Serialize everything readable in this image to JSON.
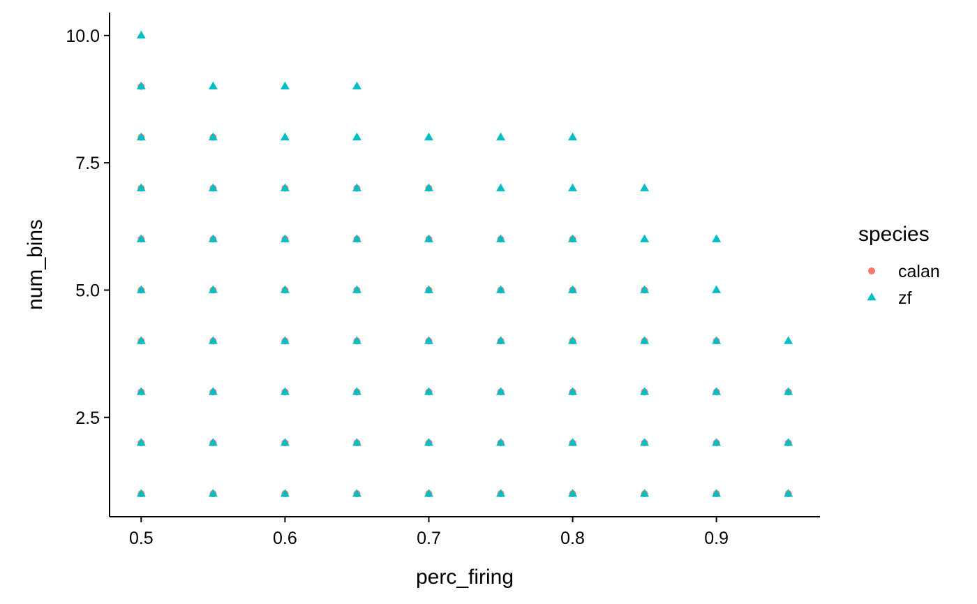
{
  "chart_data": {
    "type": "scatter",
    "title": "",
    "xlabel": "perc_firing",
    "ylabel": "num_bins",
    "xlim": [
      0.478,
      0.972
    ],
    "ylim": [
      0.55,
      10.45
    ],
    "x_ticks": [
      0.5,
      0.6,
      0.7,
      0.8,
      0.9
    ],
    "x_tick_labels": [
      "0.5",
      "0.6",
      "0.7",
      "0.8",
      "0.9"
    ],
    "y_ticks": [
      2.5,
      5.0,
      7.5,
      10.0
    ],
    "y_tick_labels": [
      "2.5",
      "5.0",
      "7.5",
      "10.0"
    ],
    "grid": false,
    "legend": {
      "title": "species",
      "position": "right",
      "entries": [
        {
          "label": "calan",
          "shape": "circle",
          "color": "#F8766D"
        },
        {
          "label": "zf",
          "shape": "triangle",
          "color": "#00BFC4"
        }
      ]
    },
    "series": [
      {
        "name": "calan",
        "shape": "circle",
        "color": "#F8766D",
        "points": [
          [
            0.5,
            1
          ],
          [
            0.5,
            2
          ],
          [
            0.5,
            3
          ],
          [
            0.5,
            4
          ],
          [
            0.5,
            5
          ],
          [
            0.5,
            6
          ],
          [
            0.5,
            7
          ],
          [
            0.5,
            8
          ],
          [
            0.5,
            9
          ],
          [
            0.55,
            1
          ],
          [
            0.55,
            2
          ],
          [
            0.55,
            3
          ],
          [
            0.55,
            4
          ],
          [
            0.55,
            5
          ],
          [
            0.55,
            6
          ],
          [
            0.55,
            7
          ],
          [
            0.55,
            8
          ],
          [
            0.6,
            1
          ],
          [
            0.6,
            2
          ],
          [
            0.6,
            3
          ],
          [
            0.6,
            4
          ],
          [
            0.6,
            5
          ],
          [
            0.6,
            6
          ],
          [
            0.6,
            7
          ],
          [
            0.65,
            1
          ],
          [
            0.65,
            2
          ],
          [
            0.65,
            3
          ],
          [
            0.65,
            4
          ],
          [
            0.65,
            5
          ],
          [
            0.65,
            6
          ],
          [
            0.65,
            7
          ],
          [
            0.7,
            1
          ],
          [
            0.7,
            2
          ],
          [
            0.7,
            3
          ],
          [
            0.7,
            4
          ],
          [
            0.7,
            5
          ],
          [
            0.7,
            6
          ],
          [
            0.7,
            7
          ],
          [
            0.75,
            1
          ],
          [
            0.75,
            2
          ],
          [
            0.75,
            3
          ],
          [
            0.75,
            4
          ],
          [
            0.75,
            5
          ],
          [
            0.75,
            6
          ],
          [
            0.8,
            1
          ],
          [
            0.8,
            2
          ],
          [
            0.8,
            3
          ],
          [
            0.8,
            4
          ],
          [
            0.8,
            5
          ],
          [
            0.8,
            6
          ],
          [
            0.85,
            1
          ],
          [
            0.85,
            2
          ],
          [
            0.85,
            3
          ],
          [
            0.85,
            4
          ],
          [
            0.85,
            5
          ],
          [
            0.9,
            1
          ],
          [
            0.9,
            2
          ],
          [
            0.9,
            3
          ],
          [
            0.9,
            4
          ],
          [
            0.95,
            1
          ],
          [
            0.95,
            2
          ],
          [
            0.95,
            3
          ]
        ]
      },
      {
        "name": "zf",
        "shape": "triangle",
        "color": "#00BFC4",
        "points": [
          [
            0.5,
            1
          ],
          [
            0.5,
            2
          ],
          [
            0.5,
            3
          ],
          [
            0.5,
            4
          ],
          [
            0.5,
            5
          ],
          [
            0.5,
            6
          ],
          [
            0.5,
            7
          ],
          [
            0.5,
            8
          ],
          [
            0.5,
            9
          ],
          [
            0.5,
            10
          ],
          [
            0.55,
            1
          ],
          [
            0.55,
            2
          ],
          [
            0.55,
            3
          ],
          [
            0.55,
            4
          ],
          [
            0.55,
            5
          ],
          [
            0.55,
            6
          ],
          [
            0.55,
            7
          ],
          [
            0.55,
            8
          ],
          [
            0.55,
            9
          ],
          [
            0.6,
            1
          ],
          [
            0.6,
            2
          ],
          [
            0.6,
            3
          ],
          [
            0.6,
            4
          ],
          [
            0.6,
            5
          ],
          [
            0.6,
            6
          ],
          [
            0.6,
            7
          ],
          [
            0.6,
            8
          ],
          [
            0.6,
            9
          ],
          [
            0.65,
            1
          ],
          [
            0.65,
            2
          ],
          [
            0.65,
            3
          ],
          [
            0.65,
            4
          ],
          [
            0.65,
            5
          ],
          [
            0.65,
            6
          ],
          [
            0.65,
            7
          ],
          [
            0.65,
            8
          ],
          [
            0.65,
            9
          ],
          [
            0.7,
            1
          ],
          [
            0.7,
            2
          ],
          [
            0.7,
            3
          ],
          [
            0.7,
            4
          ],
          [
            0.7,
            5
          ],
          [
            0.7,
            6
          ],
          [
            0.7,
            7
          ],
          [
            0.7,
            8
          ],
          [
            0.75,
            1
          ],
          [
            0.75,
            2
          ],
          [
            0.75,
            3
          ],
          [
            0.75,
            4
          ],
          [
            0.75,
            5
          ],
          [
            0.75,
            6
          ],
          [
            0.75,
            7
          ],
          [
            0.75,
            8
          ],
          [
            0.8,
            1
          ],
          [
            0.8,
            2
          ],
          [
            0.8,
            3
          ],
          [
            0.8,
            4
          ],
          [
            0.8,
            5
          ],
          [
            0.8,
            6
          ],
          [
            0.8,
            7
          ],
          [
            0.8,
            8
          ],
          [
            0.85,
            1
          ],
          [
            0.85,
            2
          ],
          [
            0.85,
            3
          ],
          [
            0.85,
            4
          ],
          [
            0.85,
            5
          ],
          [
            0.85,
            6
          ],
          [
            0.85,
            7
          ],
          [
            0.9,
            1
          ],
          [
            0.9,
            2
          ],
          [
            0.9,
            3
          ],
          [
            0.9,
            4
          ],
          [
            0.9,
            5
          ],
          [
            0.9,
            6
          ],
          [
            0.95,
            1
          ],
          [
            0.95,
            2
          ],
          [
            0.95,
            3
          ],
          [
            0.95,
            4
          ]
        ]
      }
    ]
  }
}
